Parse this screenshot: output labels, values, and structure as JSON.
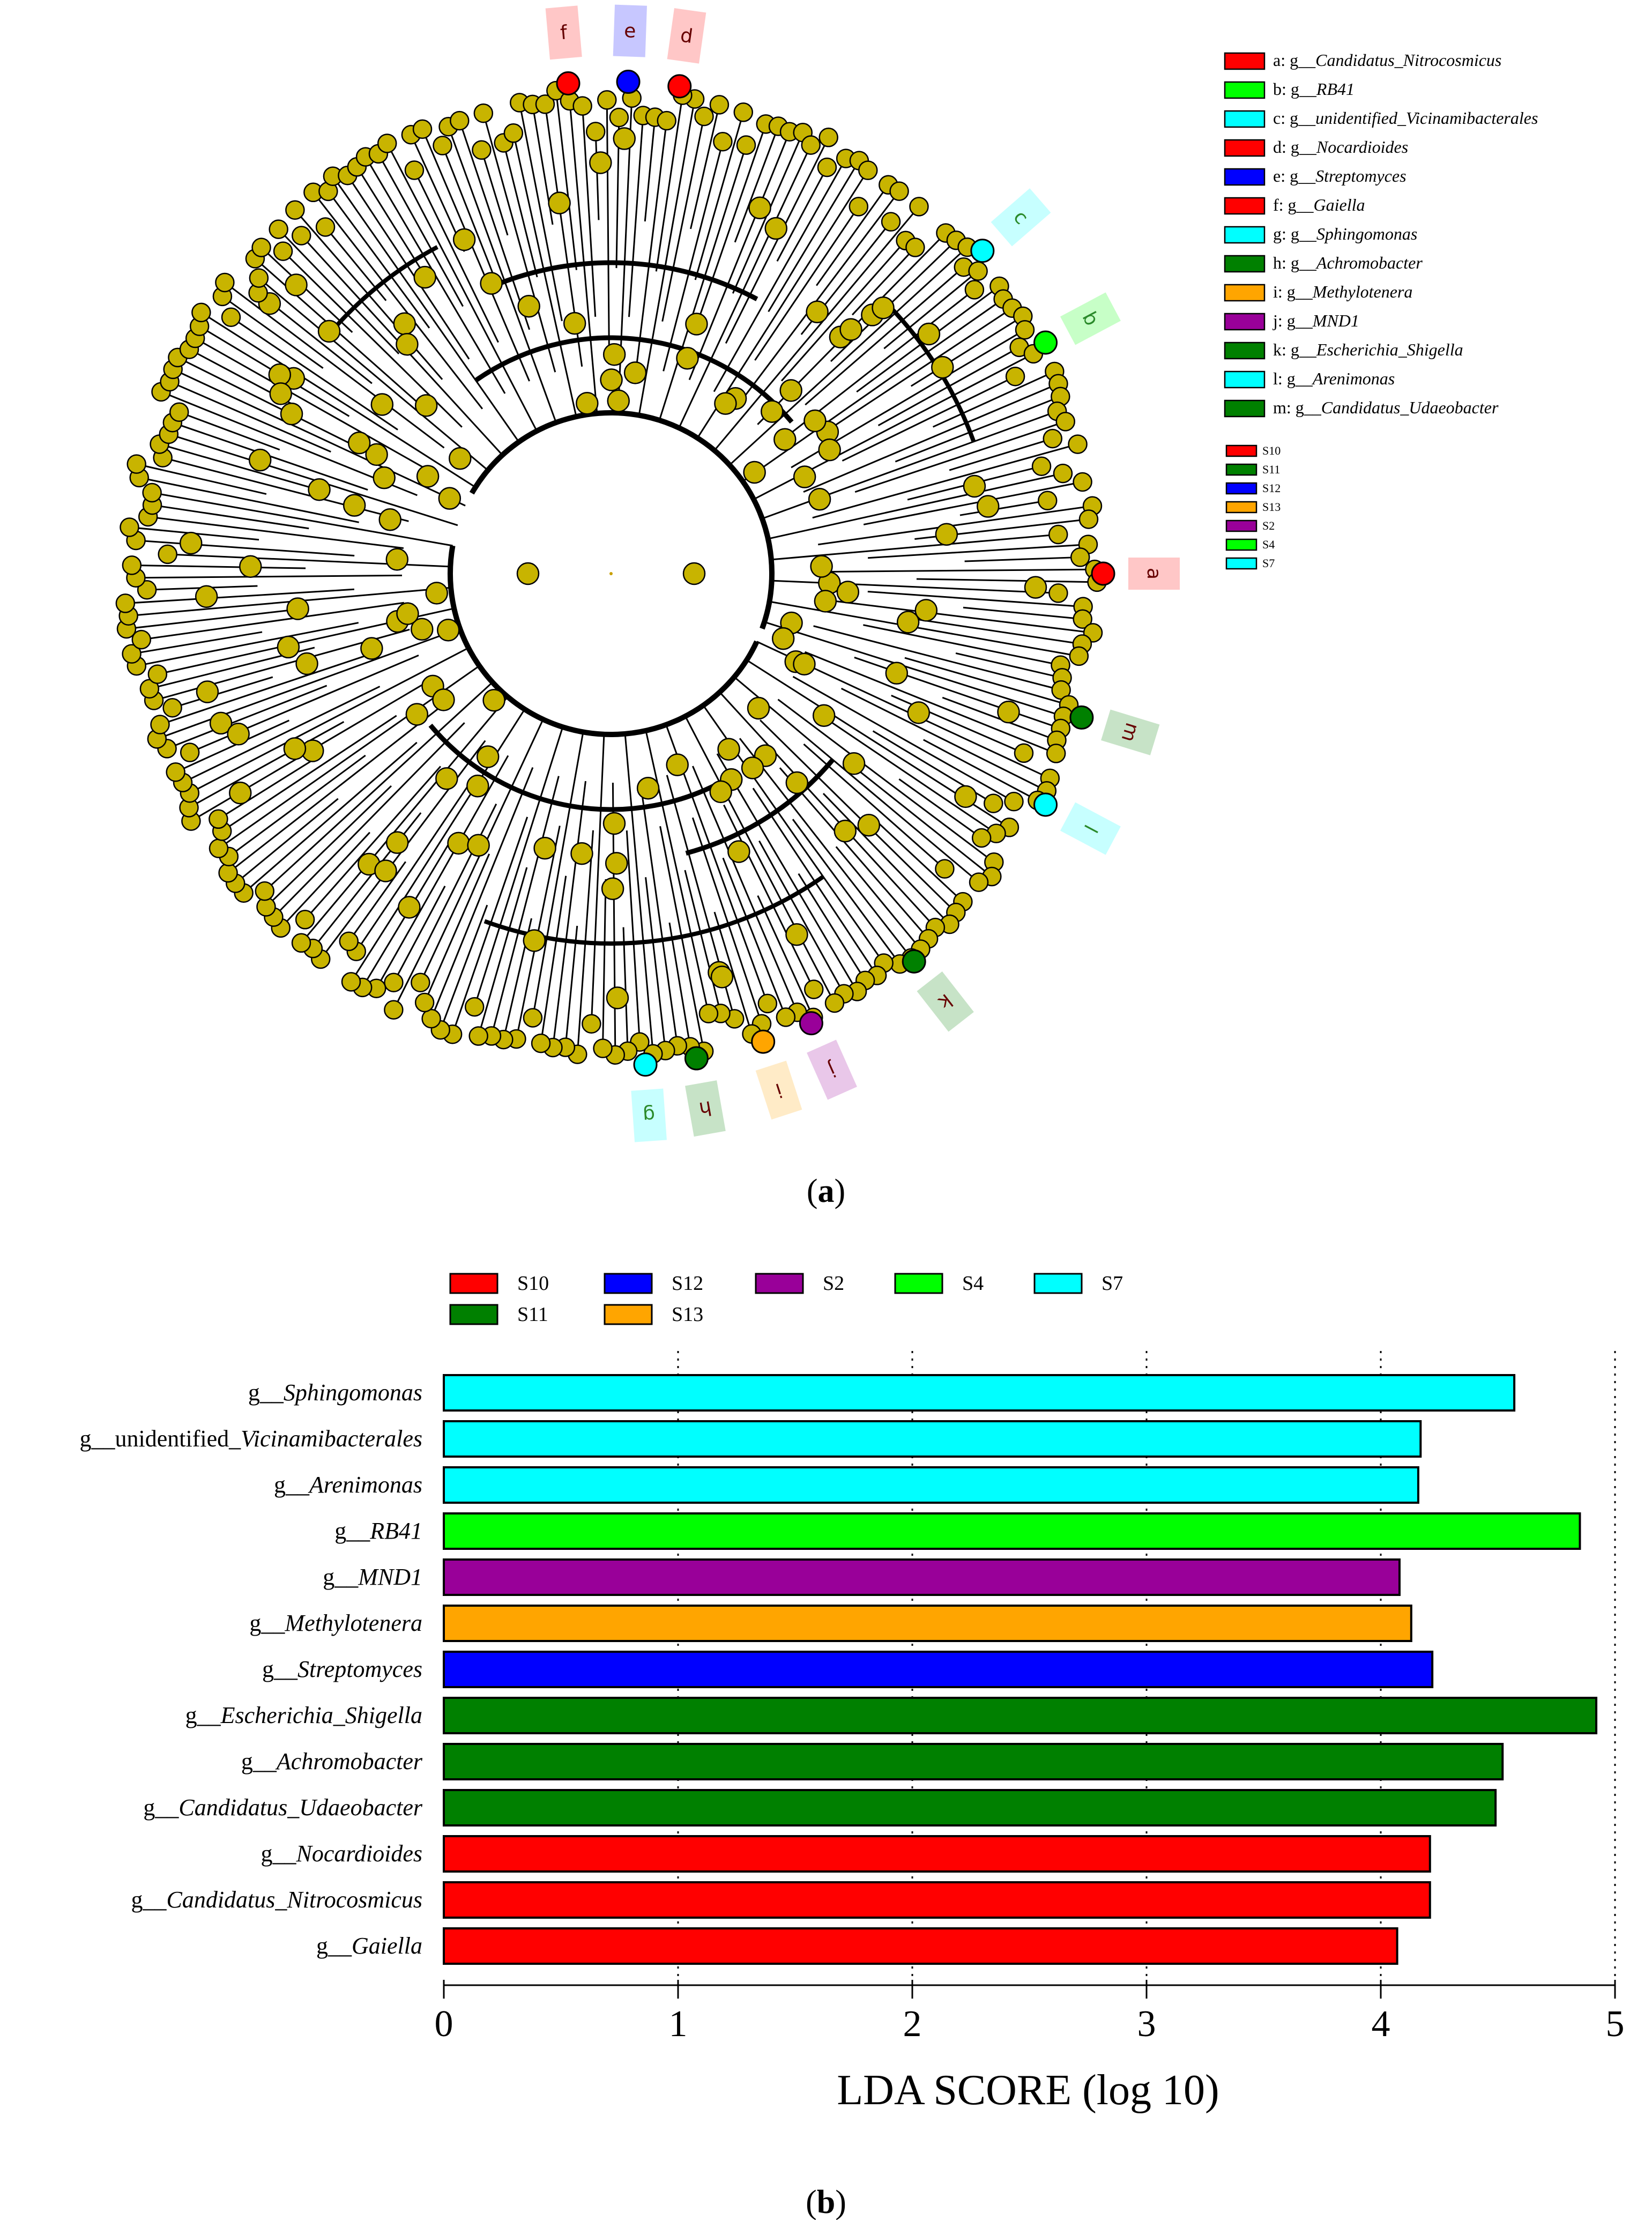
{
  "panel_a": {
    "caption_paren_open": "(",
    "caption_letter": "a",
    "caption_paren_close": ")"
  },
  "panel_b": {
    "caption_paren_open": "(",
    "caption_letter": "b",
    "caption_paren_close": ")"
  },
  "chart_data": [
    {
      "type": "cladogram",
      "description_free": true,
      "node_color": "#c8b400",
      "highlighted_taxa": [
        {
          "letter": "a",
          "prefix": "a: g__",
          "name": "Candidatus_Nitrocosmicus",
          "group": "S10",
          "color": "#ff0000"
        },
        {
          "letter": "b",
          "prefix": "b: g__",
          "name": "RB41",
          "group": "S4",
          "color": "#00ff00"
        },
        {
          "letter": "c",
          "prefix": "c: g__",
          "name": "unidentified_Vicinamibacterales",
          "group": "S7",
          "color": "#00ffff"
        },
        {
          "letter": "d",
          "prefix": "d: g__",
          "name": "Nocardioides",
          "group": "S10",
          "color": "#ff0000"
        },
        {
          "letter": "e",
          "prefix": "e: g__",
          "name": "Streptomyces",
          "group": "S12",
          "color": "#0000ff"
        },
        {
          "letter": "f",
          "prefix": "f: g__",
          "name": "Gaiella",
          "group": "S10",
          "color": "#ff0000"
        },
        {
          "letter": "g",
          "prefix": "g: g__",
          "name": "Sphingomonas",
          "group": "S7",
          "color": "#00ffff"
        },
        {
          "letter": "h",
          "prefix": "h: g__",
          "name": "Achromobacter",
          "group": "S11",
          "color": "#008000"
        },
        {
          "letter": "i",
          "prefix": "i: g__",
          "name": "Methylotenera",
          "group": "S13",
          "color": "#ffa500"
        },
        {
          "letter": "j",
          "prefix": "j: g__",
          "name": "MND1",
          "group": "S2",
          "color": "#990099"
        },
        {
          "letter": "k",
          "prefix": "k: g__",
          "name": "Escherichia_Shigella",
          "group": "S11",
          "color": "#008000"
        },
        {
          "letter": "l",
          "prefix": "l: g__",
          "name": "Arenimonas",
          "group": "S7",
          "color": "#00ffff"
        },
        {
          "letter": "m",
          "prefix": "m: g__",
          "name": "Candidatus_Udaeobacter",
          "group": "S11",
          "color": "#008000"
        }
      ],
      "groups": [
        {
          "name": "S10",
          "color": "#ff0000"
        },
        {
          "name": "S11",
          "color": "#008000"
        },
        {
          "name": "S12",
          "color": "#0000ff"
        },
        {
          "name": "S13",
          "color": "#ffa500"
        },
        {
          "name": "S2",
          "color": "#990099"
        },
        {
          "name": "S4",
          "color": "#00ff00"
        },
        {
          "name": "S7",
          "color": "#00ffff"
        }
      ]
    },
    {
      "type": "bar",
      "orientation": "horizontal",
      "xlabel": "LDA SCORE (log 10)",
      "xlim": [
        0,
        5
      ],
      "xticks": [
        0,
        1,
        2,
        3,
        4,
        5
      ],
      "grid": "vertical dotted",
      "legend": [
        {
          "name": "S10",
          "color": "#ff0000"
        },
        {
          "name": "S11",
          "color": "#008000"
        },
        {
          "name": "S12",
          "color": "#0000ff"
        },
        {
          "name": "S13",
          "color": "#ffa500"
        },
        {
          "name": "S2",
          "color": "#990099"
        },
        {
          "name": "S4",
          "color": "#00ff00"
        },
        {
          "name": "S7",
          "color": "#00ffff"
        }
      ],
      "bars": [
        {
          "prefix": "g__",
          "name": "Sphingomonas",
          "value": 4.57,
          "group": "S7",
          "color": "#00ffff"
        },
        {
          "prefix": "g__unidentified_",
          "name": "Vicinamibacterales",
          "value": 4.17,
          "group": "S7",
          "color": "#00ffff"
        },
        {
          "prefix": "g__",
          "name": "Arenimonas",
          "value": 4.16,
          "group": "S7",
          "color": "#00ffff"
        },
        {
          "prefix": "g__",
          "name": "RB41",
          "value": 4.85,
          "group": "S4",
          "color": "#00ff00"
        },
        {
          "prefix": "g__",
          "name": "MND1",
          "value": 4.08,
          "group": "S2",
          "color": "#990099"
        },
        {
          "prefix": "g__",
          "name": "Methylotenera",
          "value": 4.13,
          "group": "S13",
          "color": "#ffa500"
        },
        {
          "prefix": "g__",
          "name": "Streptomyces",
          "value": 4.22,
          "group": "S12",
          "color": "#0000ff"
        },
        {
          "prefix": "g__",
          "name": "Escherichia_Shigella",
          "value": 4.92,
          "group": "S11",
          "color": "#008000"
        },
        {
          "prefix": "g__",
          "name": "Achromobacter",
          "value": 4.52,
          "group": "S11",
          "color": "#008000"
        },
        {
          "prefix": "g__",
          "name": "Candidatus_Udaeobacter",
          "value": 4.49,
          "group": "S11",
          "color": "#008000"
        },
        {
          "prefix": "g__",
          "name": "Nocardioides",
          "value": 4.21,
          "group": "S10",
          "color": "#ff0000"
        },
        {
          "prefix": "g__",
          "name": "Candidatus_Nitrocosmicus",
          "value": 4.21,
          "group": "S10",
          "color": "#ff0000"
        },
        {
          "prefix": "g__",
          "name": "Gaiella",
          "value": 4.07,
          "group": "S10",
          "color": "#ff0000"
        }
      ]
    }
  ]
}
